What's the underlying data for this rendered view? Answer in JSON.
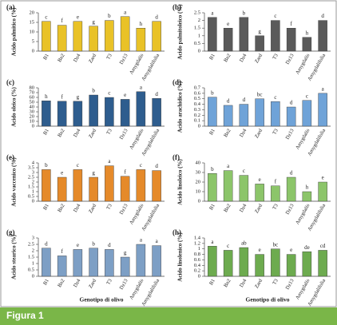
{
  "chart_data": [
    {
      "type": "bar",
      "label": "(a)",
      "ylabel": "Acido palmitico (%)",
      "categories": [
        "B1",
        "Bn2",
        "Dz4",
        "Zard",
        "T3",
        "Dz13",
        "Amygdalis",
        "Amygdalifolia"
      ],
      "values": [
        15.5,
        13.5,
        15.5,
        13,
        16,
        18,
        12,
        15.5
      ],
      "annotations": [
        "c",
        "f",
        "e",
        "g",
        "b",
        "a",
        "h",
        "d"
      ],
      "color": "#e9c227",
      "ylim": [
        0,
        20
      ],
      "yticks": [
        0,
        5,
        10,
        15,
        20
      ]
    },
    {
      "type": "bar",
      "label": "(b)",
      "ylabel": "Acido palmitoleico (%)",
      "categories": [
        "B1",
        "Bn2",
        "Dz4",
        "Zard",
        "T3",
        "Dz13",
        "Amygdalis",
        "Amygdalifolia"
      ],
      "values": [
        2.2,
        1.5,
        2.2,
        1.0,
        2.0,
        1.5,
        0.9,
        2.0
      ],
      "annotations": [
        "a",
        "e",
        "b",
        "g",
        "c",
        "f",
        "h",
        "d"
      ],
      "color": "#5a5a5a",
      "ylim": [
        0,
        2.5
      ],
      "yticks": [
        0,
        0.5,
        1,
        1.5,
        2,
        2.5
      ]
    },
    {
      "type": "bar",
      "label": "(c)",
      "ylabel": "Acido oleico (%)",
      "categories": [
        "B1",
        "Bn2",
        "Dz4",
        "Zard",
        "T3",
        "Dz13",
        "Amygdalis",
        "Amygdalifolia"
      ],
      "values": [
        53,
        52,
        52,
        65,
        60,
        56,
        72,
        58
      ],
      "annotations": [
        "h",
        "f",
        "g",
        "b",
        "c",
        "e",
        "a",
        "d"
      ],
      "color": "#2e5d8e",
      "ylim": [
        0,
        80
      ],
      "yticks": [
        0,
        10,
        20,
        30,
        40,
        50,
        60,
        70,
        80
      ]
    },
    {
      "type": "bar",
      "label": "(d)",
      "ylabel": "Acido arachidico (%)",
      "categories": [
        "B1",
        "Bn2",
        "Dz4",
        "Zard",
        "T3",
        "Dz13",
        "Amygdalis",
        "Amygdalifolia"
      ],
      "values": [
        0.53,
        0.38,
        0.4,
        0.5,
        0.45,
        0.35,
        0.47,
        0.6
      ],
      "annotations": [
        "b",
        "d",
        "d",
        "bc",
        "c",
        "d",
        "c",
        "a"
      ],
      "color": "#6fa3d8",
      "ylim": [
        0,
        0.7
      ],
      "yticks": [
        0,
        0.1,
        0.2,
        0.3,
        0.4,
        0.5,
        0.6,
        0.7
      ]
    },
    {
      "type": "bar",
      "label": "(e)",
      "ylabel": "Acido vaccenico (%)",
      "categories": [
        "B1",
        "Bn2",
        "Dz4",
        "Zard",
        "T3",
        "Dz13",
        "Amygdalis",
        "Amygdalifolia"
      ],
      "values": [
        3.3,
        2.5,
        3.3,
        2.5,
        3.7,
        2.6,
        3.3,
        3.2
      ],
      "annotations": [
        "b",
        "e",
        "c",
        "g",
        "a",
        "f",
        "c",
        "d"
      ],
      "color": "#e58a2a",
      "ylim": [
        0,
        4
      ],
      "yticks": [
        0,
        0.5,
        1,
        1.5,
        2,
        2.5,
        3,
        3.5,
        4
      ]
    },
    {
      "type": "bar",
      "label": "(f)",
      "ylabel": "Acido linoleico (%)",
      "categories": [
        "B1",
        "Bn2",
        "Dz4",
        "Zard",
        "T3",
        "Dz13",
        "Amygdalis",
        "Amygdalifolia"
      ],
      "values": [
        29,
        32,
        27,
        18,
        16,
        25,
        10,
        20
      ],
      "annotations": [
        "b",
        "a",
        "c",
        "e",
        "f",
        "d",
        "h",
        "e"
      ],
      "color": "#8cc56a",
      "ylim": [
        0,
        40
      ],
      "yticks": [
        0,
        10,
        20,
        30,
        40
      ]
    },
    {
      "type": "bar",
      "label": "(g)",
      "ylabel": "Acido stearico (%)",
      "xlabel": "Genotipo di olivo",
      "categories": [
        "B1",
        "Bn2",
        "Dz4",
        "Zard",
        "T3",
        "Dz13",
        "Amygdalis",
        "Amygdalifolia"
      ],
      "values": [
        2.2,
        1.6,
        2.1,
        2.2,
        2.1,
        1.5,
        2.5,
        2.4
      ],
      "annotations": [
        "d",
        "f",
        "e",
        "b",
        "d",
        "g",
        "a",
        "a"
      ],
      "color": "#7d9fc5",
      "ylim": [
        0,
        3
      ],
      "yticks": [
        0,
        0.5,
        1,
        1.5,
        2,
        2.5,
        3
      ]
    },
    {
      "type": "bar",
      "label": "(h)",
      "ylabel": "Acido linolenico (%)",
      "xlabel": "Genotipo di olivo",
      "categories": [
        "B1",
        "Bn2",
        "Dz4",
        "Zard",
        "T3",
        "Dz13",
        "Amygdalis",
        "Amygdalifolia"
      ],
      "values": [
        1.1,
        0.95,
        1.05,
        0.8,
        1.0,
        0.8,
        0.9,
        0.95
      ],
      "annotations": [
        "a",
        "c",
        "ab",
        "e",
        "bc",
        "e",
        "de",
        "cd"
      ],
      "color": "#6dab4f",
      "ylim": [
        0,
        1.4
      ],
      "yticks": [
        0,
        0.2,
        0.4,
        0.6,
        0.8,
        1,
        1.2,
        1.4
      ]
    }
  ],
  "caption": "Figura 1"
}
